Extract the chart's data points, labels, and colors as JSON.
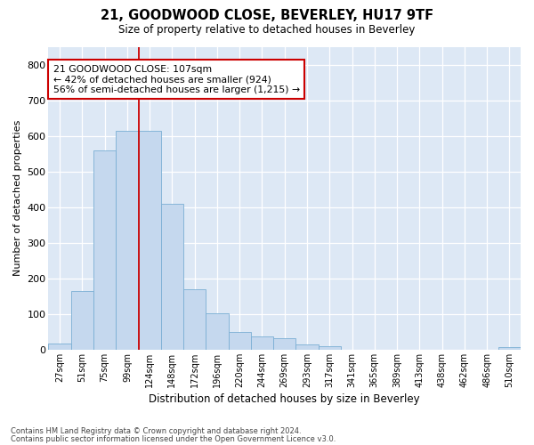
{
  "title": "21, GOODWOOD CLOSE, BEVERLEY, HU17 9TF",
  "subtitle": "Size of property relative to detached houses in Beverley",
  "xlabel": "Distribution of detached houses by size in Beverley",
  "ylabel": "Number of detached properties",
  "footnote1": "Contains HM Land Registry data © Crown copyright and database right 2024.",
  "footnote2": "Contains public sector information licensed under the Open Government Licence v3.0.",
  "bar_color": "#c5d8ee",
  "bar_edge_color": "#7aafd4",
  "background_color": "#dde8f5",
  "grid_color": "#ffffff",
  "vline_color": "#cc0000",
  "vline_x": 3.5,
  "annotation_line1": "21 GOODWOOD CLOSE: 107sqm",
  "annotation_line2": "← 42% of detached houses are smaller (924)",
  "annotation_line3": "56% of semi-detached houses are larger (1,215) →",
  "annotation_box_edgecolor": "#cc0000",
  "categories": [
    "27sqm",
    "51sqm",
    "75sqm",
    "99sqm",
    "124sqm",
    "148sqm",
    "172sqm",
    "196sqm",
    "220sqm",
    "244sqm",
    "269sqm",
    "293sqm",
    "317sqm",
    "341sqm",
    "365sqm",
    "389sqm",
    "413sqm",
    "438sqm",
    "462sqm",
    "486sqm",
    "510sqm"
  ],
  "values": [
    18,
    165,
    560,
    615,
    615,
    410,
    170,
    102,
    50,
    38,
    32,
    14,
    10,
    0,
    0,
    0,
    0,
    0,
    0,
    0,
    7
  ],
  "ylim": [
    0,
    850
  ],
  "yticks": [
    0,
    100,
    200,
    300,
    400,
    500,
    600,
    700,
    800
  ]
}
